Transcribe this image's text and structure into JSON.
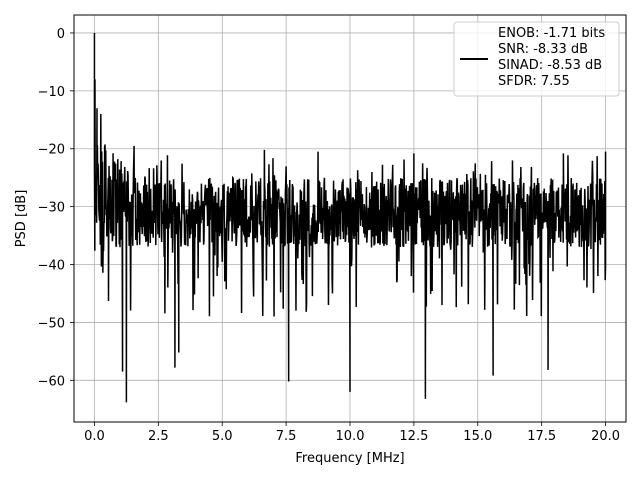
{
  "chart_data": {
    "type": "line",
    "xlabel": "Frequency [MHz]",
    "ylabel": "PSD [dB]",
    "xlim": [
      -0.8,
      20.8
    ],
    "ylim": [
      -67.2,
      3.1
    ],
    "x_ticks": [
      0.0,
      2.5,
      5.0,
      7.5,
      10.0,
      12.5,
      15.0,
      17.5,
      20.0
    ],
    "x_tick_labels": [
      "0.0",
      "2.5",
      "5.0",
      "7.5",
      "10.0",
      "12.5",
      "15.0",
      "17.5",
      "20.0"
    ],
    "y_ticks": [
      0,
      -10,
      -20,
      -30,
      -40,
      -50,
      -60
    ],
    "y_tick_labels": [
      "0",
      "−10",
      "−20",
      "−30",
      "−40",
      "−50",
      "−60"
    ],
    "grid": true,
    "legend": {
      "placement": "top-right",
      "entries": [
        "ENOB: -1.71 bits",
        "SNR: -8.33 dB",
        "SINAD: -8.53 dB",
        "SFDR: 7.55"
      ]
    },
    "series": [
      {
        "color": "#000000",
        "x_range": [
          0.0,
          20.0
        ],
        "noise_band_db": [
          -37,
          -25
        ],
        "notable_points": [
          {
            "x": 0.0,
            "y": 0.0
          },
          {
            "x": 0.02,
            "y": -8.0
          },
          {
            "x": 0.06,
            "y": -31.5
          },
          {
            "x": 0.1,
            "y": -13.0
          },
          {
            "x": 0.25,
            "y": -14.0
          },
          {
            "x": 0.4,
            "y": -19.5
          },
          {
            "x": 0.55,
            "y": -46.3
          },
          {
            "x": 1.1,
            "y": -58.5
          },
          {
            "x": 1.25,
            "y": -63.8
          },
          {
            "x": 1.55,
            "y": -19.5
          },
          {
            "x": 3.15,
            "y": -57.8
          },
          {
            "x": 3.3,
            "y": -55.2
          },
          {
            "x": 6.65,
            "y": -20.2
          },
          {
            "x": 7.6,
            "y": -60.2
          },
          {
            "x": 8.75,
            "y": -20.5
          },
          {
            "x": 10.0,
            "y": -62.0
          },
          {
            "x": 12.5,
            "y": -20.8
          },
          {
            "x": 12.95,
            "y": -63.2
          },
          {
            "x": 15.6,
            "y": -59.2
          },
          {
            "x": 17.75,
            "y": -58.2
          },
          {
            "x": 18.35,
            "y": -20.8
          },
          {
            "x": 20.0,
            "y": -20.5
          },
          {
            "x": 20.0,
            "y": -40.5
          }
        ]
      }
    ]
  }
}
